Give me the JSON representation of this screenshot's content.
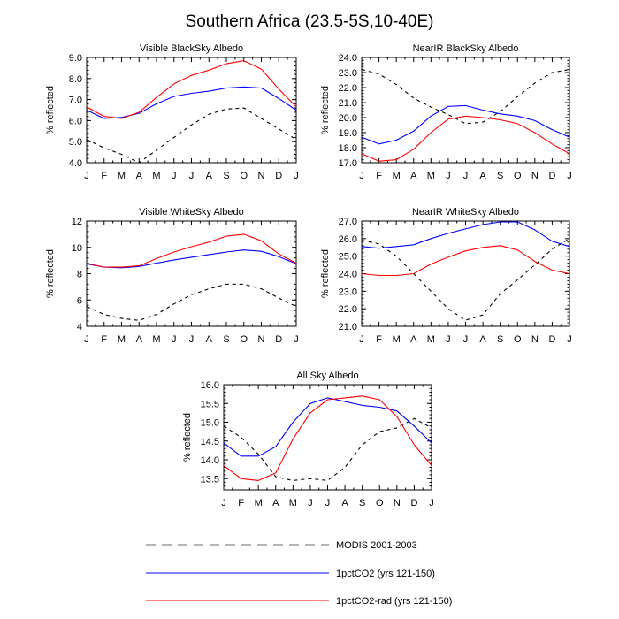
{
  "title": "Southern Africa (23.5-5S,10-40E)",
  "colors": {
    "modis": "#000000",
    "co2": "#0000ff",
    "co2rad": "#ff0000",
    "legend_modis": "#9a9a9a"
  },
  "legend": [
    {
      "label": "MODIS 2001-2003",
      "style": "dashed"
    },
    {
      "label": "1pctCO2 (yrs 121-150)",
      "style": "blue"
    },
    {
      "label": "1pctCO2-rad (yrs 121-150)",
      "style": "red"
    }
  ],
  "chart_data": [
    {
      "type": "line",
      "title": "Visible BlackSky Albedo",
      "ylabel": "% reflected",
      "categories": [
        "J",
        "F",
        "M",
        "A",
        "M",
        "J",
        "J",
        "A",
        "S",
        "O",
        "N",
        "D",
        "J"
      ],
      "ylim": [
        4.0,
        9.0
      ],
      "yticks": [
        4.0,
        5.0,
        6.0,
        7.0,
        8.0,
        9.0
      ],
      "ytick_labels": [
        "4.0",
        "5.0",
        "6.0",
        "7.0",
        "8.0",
        "9.0"
      ],
      "series": [
        {
          "name": "MODIS 2001-2003",
          "values": [
            5.1,
            4.7,
            4.4,
            4.0,
            4.6,
            5.2,
            5.8,
            6.3,
            6.55,
            6.6,
            6.1,
            5.6,
            5.1
          ]
        },
        {
          "name": "1pctCO2 (yrs 121-150)",
          "values": [
            6.5,
            6.1,
            6.15,
            6.35,
            6.8,
            7.15,
            7.3,
            7.4,
            7.55,
            7.6,
            7.55,
            7.05,
            6.5
          ]
        },
        {
          "name": "1pctCO2-rad (yrs 121-150)",
          "values": [
            6.65,
            6.2,
            6.1,
            6.4,
            7.1,
            7.75,
            8.15,
            8.4,
            8.7,
            8.85,
            8.45,
            7.5,
            6.65
          ]
        }
      ]
    },
    {
      "type": "line",
      "title": "NearIR BlackSky Albedo",
      "ylabel": "% reflected",
      "categories": [
        "J",
        "F",
        "M",
        "A",
        "M",
        "J",
        "J",
        "A",
        "S",
        "O",
        "N",
        "D",
        "J"
      ],
      "ylim": [
        17.0,
        24.0
      ],
      "yticks": [
        17.0,
        18.0,
        19.0,
        20.0,
        21.0,
        22.0,
        23.0,
        24.0
      ],
      "ytick_labels": [
        "17.0",
        "18.0",
        "19.0",
        "20.0",
        "21.0",
        "22.0",
        "23.0",
        "24.0"
      ],
      "series": [
        {
          "name": "MODIS 2001-2003",
          "values": [
            23.2,
            22.9,
            22.2,
            21.3,
            20.7,
            20.2,
            19.6,
            19.7,
            20.4,
            21.4,
            22.3,
            23.0,
            23.2
          ]
        },
        {
          "name": "1pctCO2 (yrs 121-150)",
          "values": [
            18.7,
            18.25,
            18.5,
            19.1,
            20.1,
            20.75,
            20.8,
            20.5,
            20.25,
            20.1,
            19.8,
            19.2,
            18.7
          ]
        },
        {
          "name": "1pctCO2-rad (yrs 121-150)",
          "values": [
            17.6,
            17.1,
            17.2,
            17.9,
            19.0,
            19.9,
            20.1,
            20.0,
            19.85,
            19.6,
            19.0,
            18.25,
            17.6
          ]
        }
      ]
    },
    {
      "type": "line",
      "title": "Visible WhiteSky Albedo",
      "ylabel": "% reflected",
      "categories": [
        "J",
        "F",
        "M",
        "A",
        "M",
        "J",
        "J",
        "A",
        "S",
        "O",
        "N",
        "D",
        "J"
      ],
      "ylim": [
        4,
        12
      ],
      "yticks": [
        4,
        6,
        8,
        10,
        12
      ],
      "ytick_labels": [
        "4",
        "6",
        "8",
        "10",
        "12"
      ],
      "series": [
        {
          "name": "MODIS 2001-2003",
          "values": [
            5.5,
            4.9,
            4.6,
            4.45,
            4.9,
            5.7,
            6.4,
            6.85,
            7.2,
            7.2,
            6.85,
            6.15,
            5.5
          ]
        },
        {
          "name": "1pctCO2 (yrs 121-150)",
          "values": [
            8.75,
            8.5,
            8.45,
            8.55,
            8.8,
            9.05,
            9.25,
            9.45,
            9.65,
            9.8,
            9.7,
            9.3,
            8.75
          ]
        },
        {
          "name": "1pctCO2-rad (yrs 121-150)",
          "values": [
            8.8,
            8.5,
            8.5,
            8.6,
            9.15,
            9.65,
            10.05,
            10.4,
            10.85,
            11.0,
            10.5,
            9.5,
            8.8
          ]
        }
      ]
    },
    {
      "type": "line",
      "title": "NearIR WhiteSky Albedo",
      "ylabel": "% reflected",
      "categories": [
        "J",
        "F",
        "M",
        "A",
        "M",
        "J",
        "J",
        "A",
        "S",
        "O",
        "N",
        "D",
        "J"
      ],
      "ylim": [
        21.0,
        27.0
      ],
      "yticks": [
        21.0,
        22.0,
        23.0,
        24.0,
        25.0,
        26.0,
        27.0
      ],
      "ytick_labels": [
        "21.0",
        "22.0",
        "23.0",
        "24.0",
        "25.0",
        "26.0",
        "27.0"
      ],
      "series": [
        {
          "name": "MODIS 2001-2003",
          "values": [
            25.9,
            25.7,
            25.0,
            24.0,
            23.0,
            22.0,
            21.35,
            21.65,
            22.85,
            23.65,
            24.5,
            25.4,
            26.0
          ]
        },
        {
          "name": "1pctCO2 (yrs 121-150)",
          "values": [
            25.55,
            25.45,
            25.55,
            25.65,
            26.0,
            26.3,
            26.55,
            26.8,
            26.95,
            26.95,
            26.5,
            25.85,
            25.55
          ]
        },
        {
          "name": "1pctCO2-rad (yrs 121-150)",
          "values": [
            24.0,
            23.9,
            23.9,
            24.0,
            24.55,
            24.95,
            25.3,
            25.5,
            25.6,
            25.35,
            24.7,
            24.2,
            24.0
          ]
        }
      ]
    },
    {
      "type": "line",
      "title": "All Sky Albedo",
      "ylabel": "% reflected",
      "categories": [
        "J",
        "F",
        "M",
        "A",
        "M",
        "J",
        "J",
        "A",
        "S",
        "O",
        "N",
        "D",
        "J"
      ],
      "ylim": [
        13.2,
        16.0
      ],
      "yticks": [
        13.5,
        14.0,
        14.5,
        15.0,
        15.5,
        16.0
      ],
      "ytick_labels": [
        "13.5",
        "14.0",
        "14.5",
        "15.0",
        "15.5",
        "16.0"
      ],
      "series": [
        {
          "name": "MODIS 2001-2003",
          "values": [
            14.9,
            14.6,
            14.15,
            13.55,
            13.45,
            13.5,
            13.45,
            13.8,
            14.4,
            14.75,
            14.85,
            15.1,
            14.85
          ]
        },
        {
          "name": "1pctCO2 (yrs 121-150)",
          "values": [
            14.45,
            14.1,
            14.1,
            14.35,
            15.0,
            15.5,
            15.65,
            15.55,
            15.45,
            15.4,
            15.3,
            14.9,
            14.45
          ]
        },
        {
          "name": "1pctCO2-rad (yrs 121-150)",
          "values": [
            13.85,
            13.5,
            13.45,
            13.65,
            14.55,
            15.25,
            15.6,
            15.65,
            15.7,
            15.6,
            15.15,
            14.4,
            13.85
          ]
        }
      ]
    }
  ]
}
